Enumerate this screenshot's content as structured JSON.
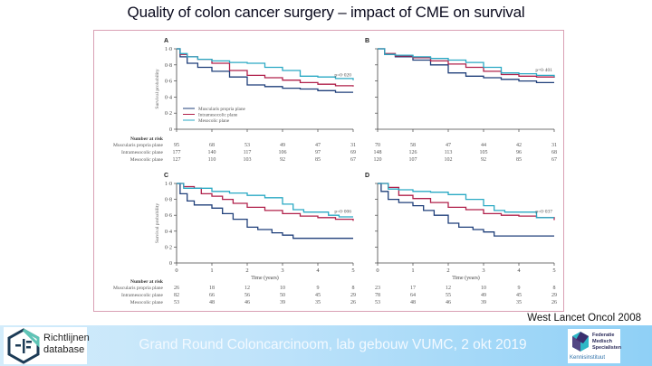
{
  "slide": {
    "title": "Quality of colon cancer surgery – impact of CME on survival",
    "citation": "West Lancet Oncol 2008",
    "footer": "Grand Round Coloncarcinoom, lab gebouw VUMC, 2 okt 2019",
    "logo_left": {
      "line1": "Richtlijnen",
      "line2": "database",
      "icon": "richtlijnen-hexagon-icon"
    },
    "logo_right": {
      "line1": "Federatie",
      "line2": "Medisch",
      "line3": "Specialisten",
      "line4": "Kennisinstituut",
      "icon": "fms-logo-icon"
    }
  },
  "colors": {
    "muscularis": "#1f3f7a",
    "intramesocolic": "#b0204a",
    "mesocolic": "#2aa9c4",
    "frame": "#d9a0b4",
    "axis": "#444444"
  },
  "chart_data": [
    {
      "type": "line",
      "panel": "A",
      "ylabel": "Survival probability",
      "xlabel": "",
      "xlim": [
        0,
        5
      ],
      "ylim": [
        0,
        1.0
      ],
      "yticks": [
        "0",
        "0·2",
        "0·4",
        "0·6",
        "0·8",
        "1·0"
      ],
      "xticks": [],
      "p_value": "p=0·020",
      "legend": [
        "Muscularis propria plane",
        "Intramesocolic plane",
        "Mesocolic plane"
      ],
      "legend_position": "bottom-left",
      "series": [
        {
          "name": "Muscularis propria plane",
          "x": [
            0,
            0.1,
            0.3,
            0.6,
            1,
            1.5,
            2,
            2.5,
            3,
            3.5,
            4,
            4.5,
            5
          ],
          "y": [
            1.0,
            0.9,
            0.82,
            0.77,
            0.72,
            0.65,
            0.55,
            0.53,
            0.51,
            0.5,
            0.48,
            0.46,
            0.46
          ]
        },
        {
          "name": "Intramesocolic plane",
          "x": [
            0,
            0.1,
            0.3,
            0.6,
            1,
            1.5,
            2,
            2.5,
            3,
            3.5,
            4,
            4.5,
            5
          ],
          "y": [
            1.0,
            0.93,
            0.9,
            0.87,
            0.82,
            0.73,
            0.67,
            0.64,
            0.61,
            0.58,
            0.56,
            0.54,
            0.53
          ]
        },
        {
          "name": "Mesocolic plane",
          "x": [
            0,
            0.1,
            0.3,
            0.6,
            1,
            1.5,
            2,
            2.5,
            3,
            3.5,
            4,
            4.5,
            5
          ],
          "y": [
            1.0,
            0.94,
            0.9,
            0.87,
            0.85,
            0.83,
            0.82,
            0.77,
            0.73,
            0.66,
            0.65,
            0.63,
            0.61
          ]
        }
      ],
      "at_risk": {
        "title": "Number at risk",
        "rows": [
          {
            "label": "Muscularis propria plane",
            "values": [
              95,
              68,
              53,
              49,
              47,
              31
            ]
          },
          {
            "label": "Intramesocolic plane",
            "values": [
              177,
              140,
              117,
              106,
              97,
              69
            ]
          },
          {
            "label": "Mesocolic plane",
            "values": [
              127,
              110,
              103,
              92,
              85,
              67
            ]
          }
        ]
      }
    },
    {
      "type": "line",
      "panel": "B",
      "xlim": [
        0,
        5
      ],
      "ylim": [
        0,
        1.0
      ],
      "p_value": "p=0·401",
      "series": [
        {
          "name": "Muscularis propria plane",
          "x": [
            0,
            0.2,
            0.5,
            1,
            1.5,
            2,
            2.5,
            3,
            3.5,
            4,
            4.5,
            5
          ],
          "y": [
            1.0,
            0.93,
            0.9,
            0.86,
            0.8,
            0.7,
            0.66,
            0.64,
            0.62,
            0.6,
            0.58,
            0.58
          ]
        },
        {
          "name": "Intramesocolic plane",
          "x": [
            0,
            0.2,
            0.5,
            1,
            1.5,
            2,
            2.5,
            3,
            3.5,
            4,
            4.5,
            5
          ],
          "y": [
            1.0,
            0.94,
            0.91,
            0.89,
            0.85,
            0.81,
            0.77,
            0.72,
            0.68,
            0.66,
            0.65,
            0.64
          ]
        },
        {
          "name": "Mesocolic plane",
          "x": [
            0,
            0.2,
            0.5,
            1,
            1.5,
            2,
            2.5,
            3,
            3.5,
            4,
            4.5,
            5
          ],
          "y": [
            1.0,
            0.93,
            0.92,
            0.9,
            0.88,
            0.86,
            0.83,
            0.77,
            0.7,
            0.69,
            0.67,
            0.65
          ]
        }
      ],
      "at_risk": {
        "rows": [
          {
            "label": "Muscularis propria plane",
            "values": [
              70,
              58,
              47,
              44,
              42,
              31
            ]
          },
          {
            "label": "Intramesocolic plane",
            "values": [
              148,
              126,
              113,
              105,
              96,
              68
            ]
          },
          {
            "label": "Mesocolic plane",
            "values": [
              120,
              107,
              102,
              92,
              85,
              67
            ]
          }
        ]
      }
    },
    {
      "type": "line",
      "panel": "C",
      "ylabel": "Survival probability",
      "xlabel": "Time (years)",
      "xlim": [
        0,
        5
      ],
      "ylim": [
        0,
        1.0
      ],
      "yticks": [
        "0",
        "0·2",
        "0·4",
        "0·6",
        "0·8",
        "1·0"
      ],
      "xticks": [
        "0",
        "1",
        "2",
        "3",
        "4",
        "5"
      ],
      "p_value": "p=0·006",
      "series": [
        {
          "name": "Muscularis propria plane",
          "x": [
            0,
            0.1,
            0.3,
            0.5,
            0.7,
            1,
            1.3,
            1.6,
            2,
            2.3,
            2.7,
            3,
            3.3,
            3.6,
            4,
            5
          ],
          "y": [
            1.0,
            0.87,
            0.78,
            0.73,
            0.73,
            0.69,
            0.62,
            0.55,
            0.45,
            0.42,
            0.38,
            0.35,
            0.31,
            0.31,
            0.31,
            0.31
          ]
        },
        {
          "name": "Intramesocolic plane",
          "x": [
            0,
            0.2,
            0.5,
            0.7,
            1,
            1.3,
            1.6,
            2,
            2.5,
            3,
            3.5,
            4,
            4.5,
            5
          ],
          "y": [
            1.0,
            0.96,
            0.94,
            0.87,
            0.84,
            0.8,
            0.75,
            0.7,
            0.66,
            0.62,
            0.59,
            0.57,
            0.55,
            0.53
          ]
        },
        {
          "name": "Mesocolic plane",
          "x": [
            0,
            0.2,
            0.5,
            1,
            1.5,
            2,
            2.5,
            3,
            3.3,
            3.6,
            4,
            4.3,
            4.6,
            5
          ],
          "y": [
            1.0,
            0.94,
            0.94,
            0.9,
            0.88,
            0.85,
            0.82,
            0.74,
            0.67,
            0.64,
            0.64,
            0.6,
            0.58,
            0.58
          ]
        }
      ],
      "at_risk": {
        "title": "Number at risk",
        "rows": [
          {
            "label": "Muscularis propria plane",
            "values": [
              26,
              18,
              12,
              10,
              9,
              8
            ]
          },
          {
            "label": "Intramesocolic plane",
            "values": [
              82,
              66,
              56,
              50,
              45,
              29
            ]
          },
          {
            "label": "Mesocolic plane",
            "values": [
              53,
              48,
              46,
              39,
              35,
              26
            ]
          }
        ]
      }
    },
    {
      "type": "line",
      "panel": "D",
      "xlabel": "Time (years)",
      "xlim": [
        0,
        5
      ],
      "ylim": [
        0,
        1.0
      ],
      "xticks": [
        "0",
        "1",
        "2",
        "3",
        "4",
        "5"
      ],
      "p_value": "p=0·037",
      "series": [
        {
          "name": "Muscularis propria plane",
          "x": [
            0,
            0.1,
            0.3,
            0.6,
            1,
            1.3,
            1.6,
            2,
            2.3,
            2.7,
            3,
            3.3,
            3.6,
            4,
            5
          ],
          "y": [
            1.0,
            0.9,
            0.8,
            0.76,
            0.72,
            0.66,
            0.6,
            0.5,
            0.45,
            0.42,
            0.39,
            0.34,
            0.34,
            0.34,
            0.34
          ]
        },
        {
          "name": "Intramesocolic plane",
          "x": [
            0,
            0.3,
            0.6,
            1,
            1.5,
            2,
            2.5,
            3,
            3.5,
            4,
            4.5,
            5
          ],
          "y": [
            1.0,
            0.95,
            0.85,
            0.81,
            0.76,
            0.7,
            0.67,
            0.62,
            0.6,
            0.59,
            0.57,
            0.54
          ]
        },
        {
          "name": "Mesocolic plane",
          "x": [
            0,
            0.3,
            0.6,
            1,
            1.5,
            2,
            2.5,
            3,
            3.3,
            3.6,
            4,
            4.5,
            5
          ],
          "y": [
            1.0,
            0.93,
            0.92,
            0.9,
            0.89,
            0.86,
            0.8,
            0.72,
            0.66,
            0.64,
            0.64,
            0.57,
            0.57
          ]
        }
      ],
      "at_risk": {
        "rows": [
          {
            "label": "Muscularis propria plane",
            "values": [
              23,
              17,
              12,
              10,
              9,
              8
            ]
          },
          {
            "label": "Intramesocolic plane",
            "values": [
              78,
              64,
              55,
              49,
              45,
              29
            ]
          },
          {
            "label": "Mesocolic plane",
            "values": [
              53,
              48,
              46,
              39,
              35,
              26
            ]
          }
        ]
      }
    }
  ]
}
